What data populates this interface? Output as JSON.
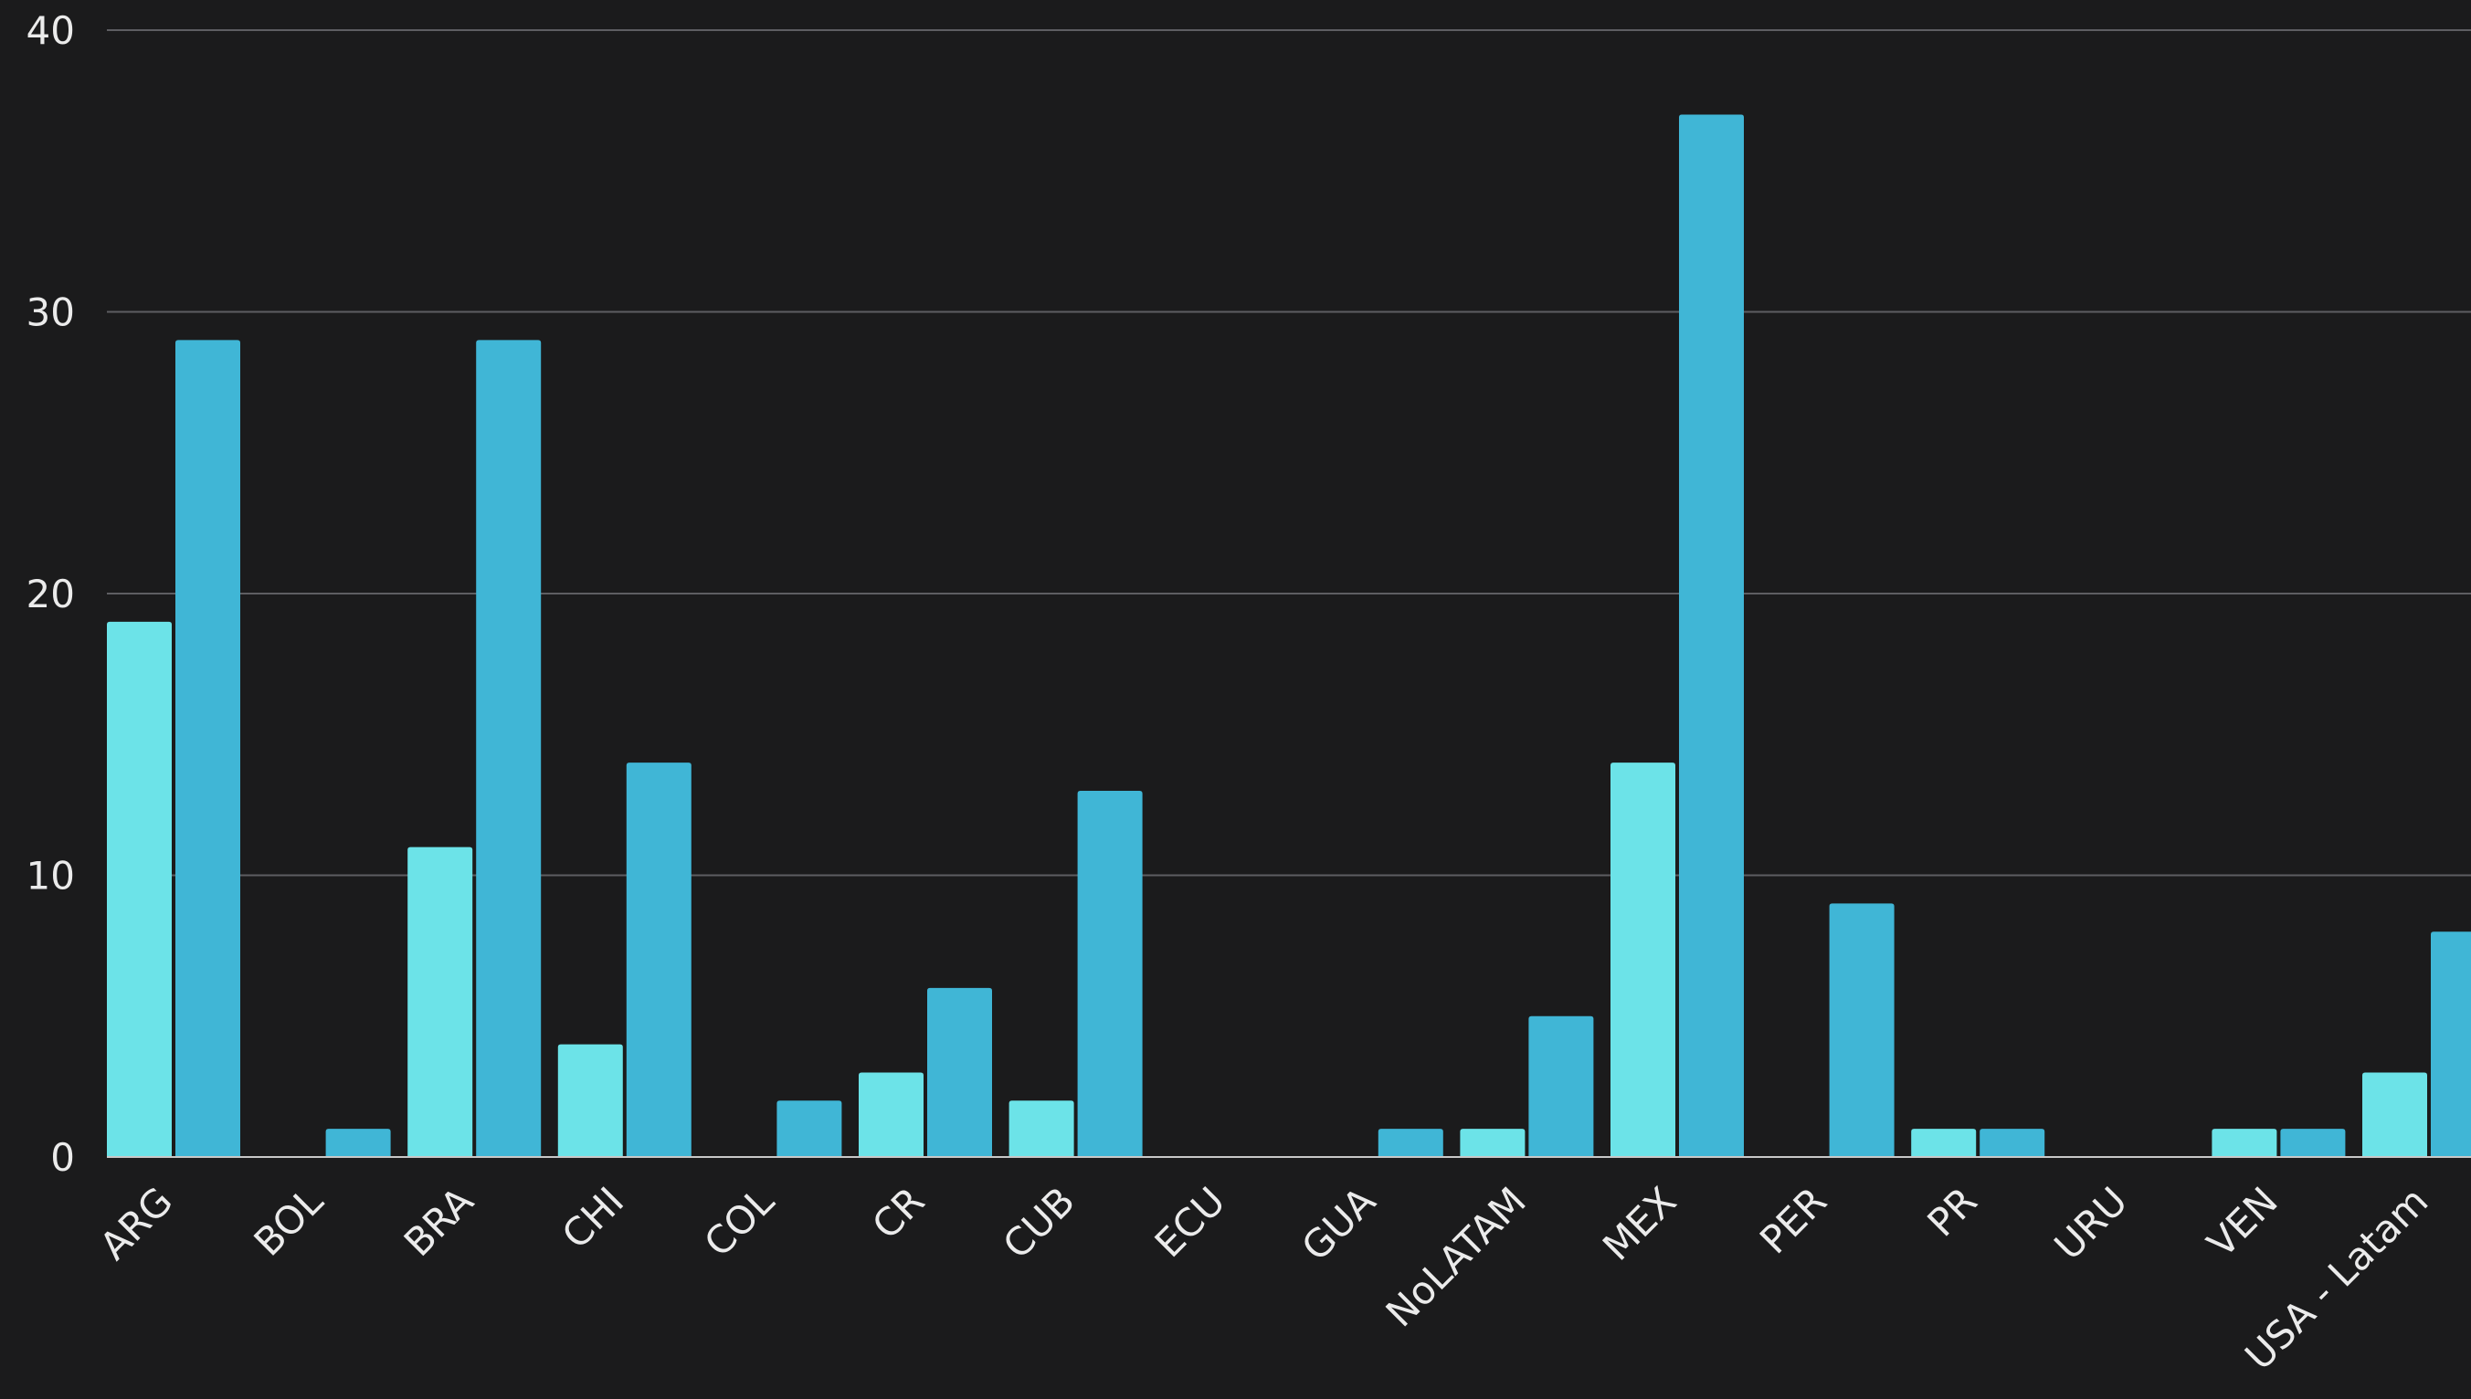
{
  "chart_data": {
    "type": "bar",
    "categories": [
      "ARG",
      "BOL",
      "BRA",
      "CHI",
      "COL",
      "CR",
      "CUB",
      "ECU",
      "GUA",
      "NoLATAM",
      "MEX",
      "PER",
      "PR",
      "URU",
      "VEN",
      "USA - Latam"
    ],
    "series": [
      {
        "values": [
          19,
          0,
          11,
          4,
          0,
          3,
          2,
          0,
          0,
          1,
          14,
          0,
          1,
          0,
          1,
          3
        ],
        "color": "#6ce3e8"
      },
      {
        "values": [
          29,
          1,
          29,
          14,
          2,
          6,
          13,
          0,
          1,
          5,
          37,
          9,
          1,
          0,
          1,
          8
        ],
        "color": "#40b6d6"
      }
    ],
    "y_ticks": [
      "0",
      "10",
      "20",
      "30",
      "40"
    ],
    "ylim": [
      0,
      40
    ],
    "grid": true,
    "legend": "none",
    "title": "",
    "xlabel": "",
    "ylabel": ""
  }
}
